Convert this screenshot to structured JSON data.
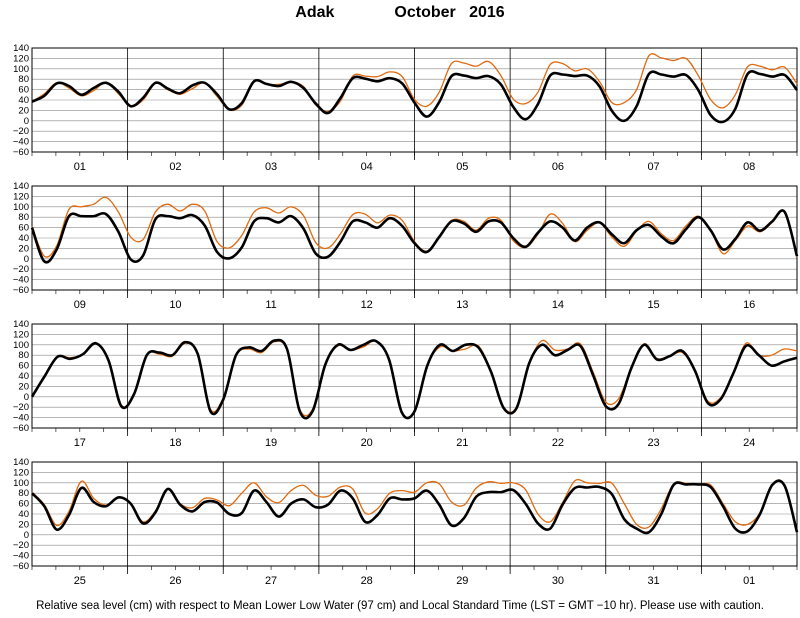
{
  "title": {
    "station": "Adak",
    "month_year": "October   2016"
  },
  "caption": "Relative sea level (cm) with respect to Mean Lower Low Water (97 cm) and Local Standard Time (LST = GMT −10 hr). Please use with caution.",
  "colors": {
    "predicted": "#000000",
    "observed": "#e06a10",
    "grid": "#8a8a8a"
  },
  "chart_data": {
    "type": "line",
    "title": "Adak   October 2016",
    "ylabel": "",
    "ylim": [
      -60,
      140
    ],
    "y_ticks": [
      "140",
      "120",
      "100",
      "80",
      "60",
      "40",
      "20",
      "0",
      "−20",
      "−40",
      "−60"
    ],
    "panels": [
      {
        "days": [
          "01",
          "02",
          "03",
          "04",
          "05",
          "06",
          "07",
          "08"
        ],
        "series": [
          {
            "values": [
              37,
              48,
              72,
              67,
              50,
              63,
              73,
              56,
              28,
              44,
              73,
              62,
              53,
              68,
              73,
              51,
              22,
              34,
              76,
              71,
              67,
              75,
              63,
              33,
              15,
              44,
              82,
              81,
              76,
              82,
              72,
              35,
              8,
              36,
              86,
              87,
              82,
              86,
              70,
              27,
              3,
              32,
              87,
              89,
              86,
              87,
              66,
              19,
              0,
              28,
              90,
              89,
              85,
              88,
              59,
              11,
              -2,
              23,
              90,
              90,
              85,
              88,
              59
            ]
          },
          {
            "values": [
              37,
              52,
              73,
              63,
              48,
              58,
              74,
              52,
              28,
              40,
              72,
              60,
              51,
              62,
              73,
              47,
              21,
              30,
              76,
              70,
              70,
              74,
              66,
              30,
              18,
              38,
              86,
              86,
              85,
              94,
              85,
              41,
              28,
              55,
              110,
              111,
              105,
              114,
              87,
              42,
              33,
              55,
              108,
              110,
              96,
              100,
              75,
              35,
              35,
              60,
              125,
              121,
              116,
              120,
              87,
              41,
              25,
              50,
              104,
              105,
              98,
              103,
              71
            ]
          }
        ]
      },
      {
        "days": [
          "09",
          "10",
          "11",
          "12",
          "13",
          "14",
          "15",
          "16"
        ],
        "series": [
          {
            "values": [
              60,
              -5,
              18,
              82,
              82,
              82,
              86,
              52,
              -1,
              6,
              76,
              82,
              78,
              84,
              64,
              13,
              1,
              22,
              72,
              78,
              70,
              82,
              58,
              10,
              4,
              33,
              72,
              70,
              60,
              78,
              63,
              30,
              13,
              42,
              72,
              68,
              52,
              72,
              70,
              40,
              23,
              50,
              72,
              60,
              35,
              60,
              70,
              47,
              30,
              55,
              65,
              43,
              30,
              57,
              80,
              55,
              18,
              38,
              70,
              54,
              72,
              90,
              5
            ]
          },
          {
            "values": [
              62,
              5,
              25,
              95,
              100,
              105,
              118,
              90,
              42,
              37,
              90,
              105,
              92,
              105,
              92,
              33,
              21,
              45,
              90,
              98,
              88,
              100,
              83,
              31,
              21,
              48,
              85,
              86,
              69,
              84,
              74,
              33,
              15,
              43,
              74,
              72,
              55,
              78,
              74,
              35,
              22,
              47,
              86,
              68,
              33,
              55,
              69,
              42,
              24,
              53,
              72,
              48,
              35,
              63,
              82,
              55,
              10,
              35,
              63,
              52,
              70,
              90,
              4
            ]
          }
        ]
      },
      {
        "days": [
          "17",
          "18",
          "19",
          "20",
          "21",
          "22",
          "23",
          "24"
        ],
        "series": [
          {
            "values": [
              0,
              40,
              77,
              73,
              82,
              103,
              70,
              -18,
              5,
              80,
              85,
              80,
              105,
              82,
              -28,
              -5,
              80,
              95,
              88,
              108,
              92,
              -28,
              -28,
              62,
              100,
              90,
              100,
              107,
              72,
              -30,
              -28,
              60,
              100,
              88,
              100,
              95,
              48,
              -22,
              -22,
              65,
              100,
              80,
              90,
              98,
              42,
              -18,
              -14,
              55,
              100,
              72,
              78,
              88,
              50,
              -12,
              -5,
              45,
              98,
              80,
              60,
              68,
              75
            ]
          },
          {
            "values": [
              0,
              40,
              77,
              75,
              82,
              103,
              72,
              -16,
              5,
              80,
              82,
              78,
              103,
              82,
              -24,
              -2,
              80,
              92,
              85,
              106,
              90,
              -24,
              -24,
              62,
              98,
              90,
              96,
              107,
              72,
              -28,
              -28,
              60,
              96,
              88,
              92,
              98,
              50,
              -20,
              -20,
              65,
              108,
              90,
              92,
              102,
              48,
              -10,
              -4,
              55,
              102,
              74,
              78,
              85,
              50,
              -8,
              -2,
              45,
              103,
              80,
              80,
              92,
              88
            ]
          }
        ]
      },
      {
        "days": [
          "25",
          "26",
          "27",
          "28",
          "29",
          "30",
          "31",
          "01"
        ],
        "series": [
          {
            "values": [
              80,
              55,
              10,
              38,
              90,
              63,
              55,
              72,
              60,
              22,
              43,
              88,
              58,
              45,
              63,
              62,
              40,
              42,
              85,
              63,
              35,
              60,
              68,
              53,
              58,
              85,
              70,
              25,
              38,
              70,
              68,
              70,
              85,
              58,
              18,
              32,
              73,
              82,
              82,
              86,
              60,
              22,
              12,
              58,
              90,
              91,
              92,
              78,
              30,
              12,
              5,
              40,
              96,
              97,
              97,
              92,
              55,
              12,
              7,
              40,
              96,
              94,
              5
            ]
          },
          {
            "values": [
              82,
              58,
              18,
              45,
              103,
              70,
              57,
              72,
              60,
              25,
              46,
              88,
              60,
              52,
              70,
              67,
              56,
              80,
              100,
              73,
              62,
              85,
              95,
              76,
              74,
              92,
              88,
              42,
              50,
              80,
              85,
              82,
              100,
              98,
              63,
              57,
              90,
              102,
              99,
              100,
              87,
              40,
              25,
              62,
              104,
              100,
              99,
              99,
              60,
              20,
              15,
              50,
              98,
              99,
              97,
              96,
              60,
              25,
              20,
              42,
              97,
              96,
              5
            ]
          }
        ]
      }
    ]
  }
}
